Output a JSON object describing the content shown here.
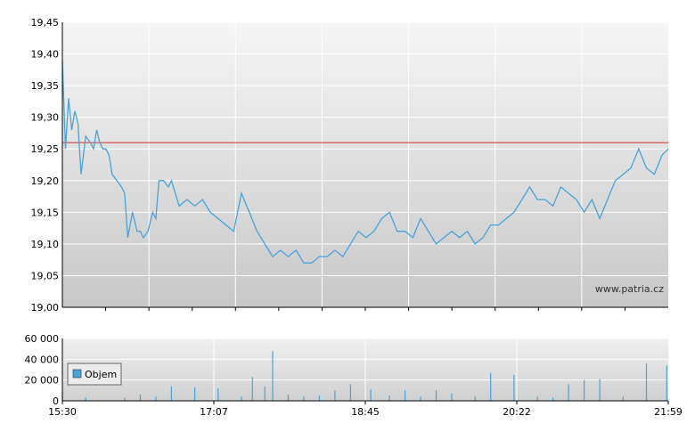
{
  "chart_data": [
    {
      "type": "line",
      "title": "",
      "watermark": "www.patria.cz",
      "ylim": [
        19.0,
        19.45
      ],
      "y_ticks": [
        "19,00",
        "19,05",
        "19,10",
        "19,15",
        "19,20",
        "19,25",
        "19,30",
        "19,35",
        "19,40",
        "19,45"
      ],
      "reference_line": {
        "value": 19.26,
        "color": "#d03030"
      },
      "colors": {
        "line": "#4aa3d8",
        "background_top": "#f6f6f6",
        "background_bottom": "#c8c8c8",
        "grid": "#ffffff"
      },
      "series": [
        {
          "x": [
            "15:30",
            "15:32",
            "15:34",
            "15:36",
            "15:38",
            "15:40",
            "15:42",
            "15:45",
            "15:48",
            "15:50",
            "15:52",
            "15:54",
            "15:56",
            "15:58",
            "16:00",
            "16:02",
            "16:05",
            "16:08",
            "16:10",
            "16:12",
            "16:15",
            "16:18",
            "16:20",
            "16:22",
            "16:25",
            "16:28",
            "16:30",
            "16:32",
            "16:35",
            "16:38",
            "16:40",
            "16:45",
            "16:50",
            "16:55",
            "17:00",
            "17:05",
            "17:10",
            "17:15",
            "17:20",
            "17:25",
            "17:30",
            "17:35",
            "17:40",
            "17:45",
            "17:50",
            "17:55",
            "18:00",
            "18:05",
            "18:10",
            "18:15",
            "18:20",
            "18:25",
            "18:30",
            "18:35",
            "18:40",
            "18:45",
            "18:50",
            "18:55",
            "19:00",
            "19:05",
            "19:10",
            "19:15",
            "19:20",
            "19:25",
            "19:30",
            "19:35",
            "19:40",
            "19:45",
            "19:50",
            "19:55",
            "20:00",
            "20:05",
            "20:10",
            "20:15",
            "20:20",
            "20:25",
            "20:30",
            "20:35",
            "20:40",
            "20:45",
            "20:50",
            "20:55",
            "21:00",
            "21:05",
            "21:10",
            "21:15",
            "21:20",
            "21:25",
            "21:30",
            "21:35",
            "21:40",
            "21:45",
            "21:50",
            "21:55",
            "21:59"
          ],
          "values": [
            19.39,
            19.25,
            19.33,
            19.28,
            19.31,
            19.29,
            19.21,
            19.27,
            19.26,
            19.25,
            19.28,
            19.26,
            19.25,
            19.25,
            19.24,
            19.21,
            19.2,
            19.19,
            19.18,
            19.11,
            19.15,
            19.12,
            19.12,
            19.11,
            19.12,
            19.15,
            19.14,
            19.2,
            19.2,
            19.19,
            19.2,
            19.16,
            19.17,
            19.16,
            19.17,
            19.15,
            19.14,
            19.13,
            19.12,
            19.18,
            19.15,
            19.12,
            19.1,
            19.08,
            19.09,
            19.08,
            19.09,
            19.07,
            19.07,
            19.08,
            19.08,
            19.09,
            19.08,
            19.1,
            19.12,
            19.11,
            19.12,
            19.14,
            19.15,
            19.12,
            19.12,
            19.11,
            19.14,
            19.12,
            19.1,
            19.11,
            19.12,
            19.11,
            19.12,
            19.1,
            19.11,
            19.13,
            19.13,
            19.14,
            19.15,
            19.17,
            19.19,
            19.17,
            19.17,
            19.16,
            19.19,
            19.18,
            19.17,
            19.15,
            19.17,
            19.14,
            19.17,
            19.2,
            19.21,
            19.22,
            19.25,
            19.22,
            19.21,
            19.24,
            19.25
          ]
        }
      ]
    },
    {
      "type": "bar",
      "title": "",
      "ylim": [
        0,
        60000
      ],
      "y_ticks": [
        "0",
        "20 000",
        "40 000",
        "60 000"
      ],
      "x_ticks": [
        "15:30",
        "17:07",
        "18:45",
        "20:22",
        "21:59"
      ],
      "legend": {
        "label": "Objem",
        "placement": "left"
      },
      "colors": {
        "bar": "#4aa3d8"
      },
      "series": [
        {
          "name": "Objem",
          "x": [
            "15:30",
            "15:45",
            "16:10",
            "16:20",
            "16:30",
            "16:40",
            "16:55",
            "17:10",
            "17:25",
            "17:32",
            "17:40",
            "17:45",
            "17:55",
            "18:05",
            "18:15",
            "18:25",
            "18:35",
            "18:48",
            "19:00",
            "19:10",
            "19:20",
            "19:30",
            "19:40",
            "19:55",
            "20:05",
            "20:20",
            "20:35",
            "20:45",
            "20:55",
            "21:05",
            "21:15",
            "21:30",
            "21:45",
            "21:58"
          ],
          "values": [
            9000,
            3000,
            3000,
            6000,
            4000,
            14000,
            13000,
            12000,
            4000,
            23000,
            14000,
            48000,
            6000,
            4000,
            5000,
            10000,
            16000,
            11000,
            5000,
            10000,
            4000,
            10000,
            7000,
            4000,
            27000,
            25000,
            4000,
            3000,
            16000,
            20000,
            21000,
            4000,
            36000,
            34000
          ]
        }
      ]
    }
  ]
}
